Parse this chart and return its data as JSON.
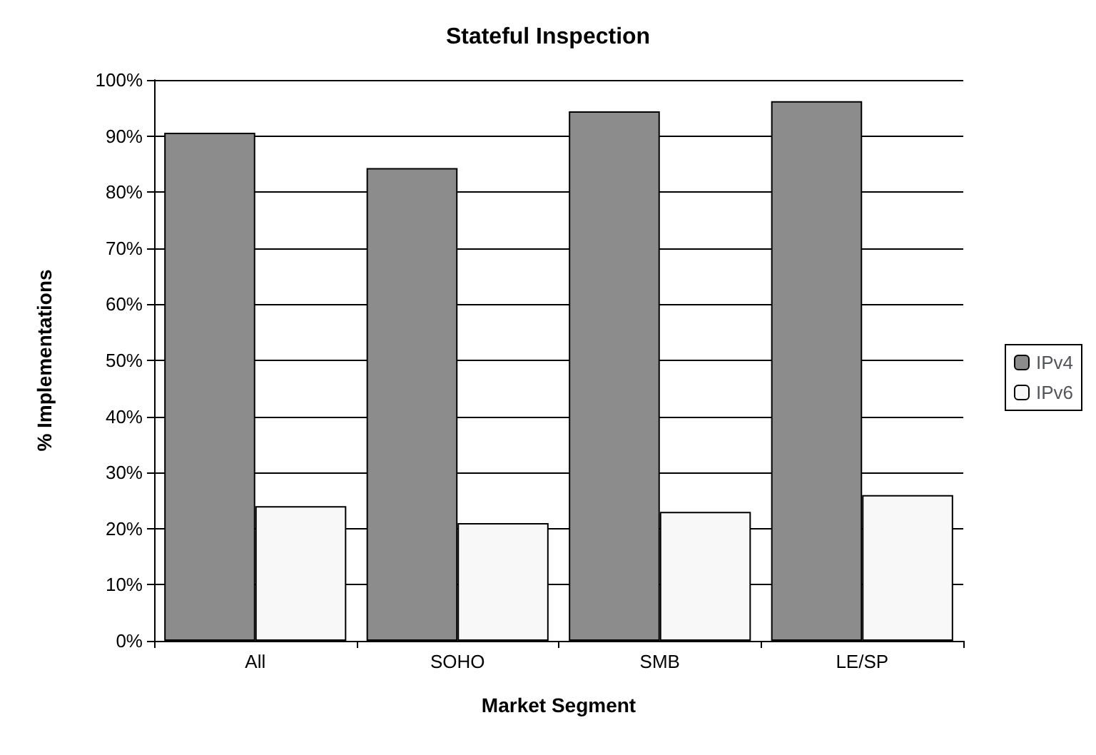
{
  "chart_data": {
    "type": "bar",
    "title": "Stateful Inspection",
    "xlabel": "Market Segment",
    "ylabel": "% Implementations",
    "categories": [
      "All",
      "SOHO",
      "SMB",
      "LE/SP"
    ],
    "series": [
      {
        "name": "IPv4",
        "color": "#8c8c8c",
        "values": [
          90.6,
          84.3,
          94.4,
          96.2
        ]
      },
      {
        "name": "IPv6",
        "color": "#f8f8f8",
        "values": [
          24,
          21,
          23,
          26
        ]
      }
    ],
    "ylim": [
      0,
      100
    ],
    "yticks": [
      {
        "value": 0,
        "label": "0%"
      },
      {
        "value": 10,
        "label": "10%"
      },
      {
        "value": 20,
        "label": "20%"
      },
      {
        "value": 30,
        "label": "30%"
      },
      {
        "value": 40,
        "label": "40%"
      },
      {
        "value": 50,
        "label": "50%"
      },
      {
        "value": 60,
        "label": "60%"
      },
      {
        "value": 70,
        "label": "70%"
      },
      {
        "value": 80,
        "label": "80%"
      },
      {
        "value": 90,
        "label": "90%"
      },
      {
        "value": 100,
        "label": "100%"
      }
    ],
    "grid": "y",
    "legend": "right"
  }
}
